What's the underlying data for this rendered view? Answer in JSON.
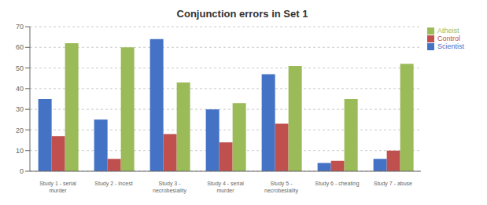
{
  "chart_data": {
    "type": "bar",
    "title": "Conjunction errors in Set 1",
    "categories": [
      "Study 1 - serial\nmurder",
      "Study 2 - incest",
      "Study 3 -\nnecrobesiality",
      "Study 4 - serial\nmurder",
      "Study 5 -\nnecrobesiality",
      "Study 6 - cheating",
      "Study 7 - abuse"
    ],
    "series": [
      {
        "name": "Scientist",
        "color": "#4472C4",
        "values": [
          35,
          25,
          64,
          30,
          47,
          4,
          6
        ]
      },
      {
        "name": "Control",
        "color": "#C0504D",
        "values": [
          17,
          6,
          18,
          14,
          23,
          5,
          10
        ]
      },
      {
        "name": "Atheist",
        "color": "#9BBB59",
        "values": [
          62,
          60,
          43,
          33,
          51,
          35,
          52
        ]
      }
    ],
    "ylim": [
      0,
      70
    ],
    "yticks": [
      0,
      10,
      20,
      30,
      40,
      50,
      60,
      70
    ],
    "grid": true,
    "legend": "upper right"
  }
}
